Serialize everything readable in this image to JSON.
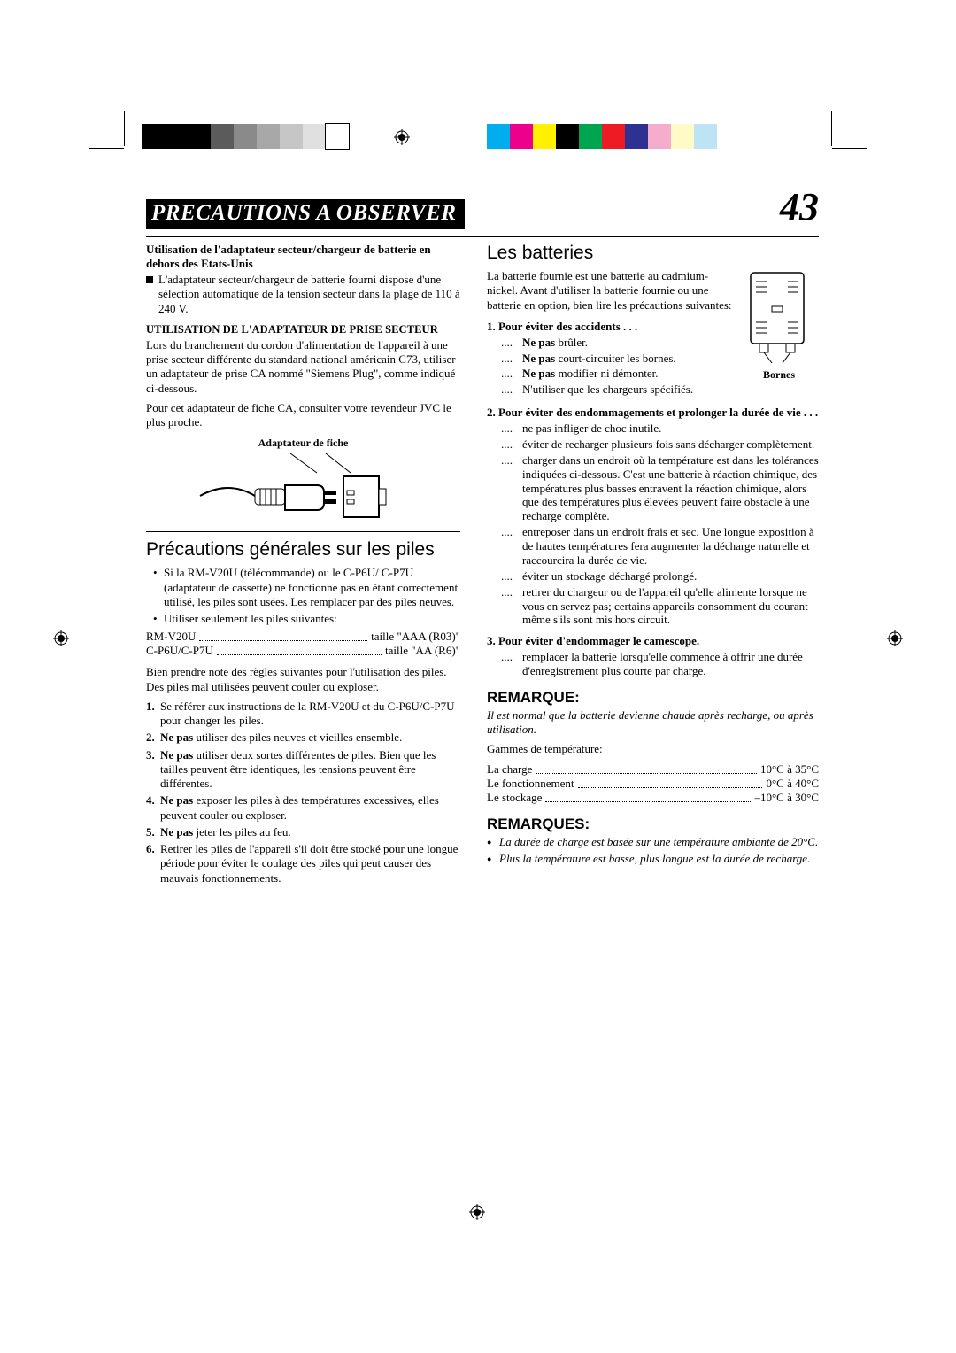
{
  "page": {
    "title": "PRECAUTIONS A OBSERVER",
    "number": "43"
  },
  "colorbars": {
    "left": [
      "#000000",
      "#000000",
      "#000000",
      "#5b5b5b",
      "#8a8a8a",
      "#a8a8a8",
      "#c6c6c6",
      "#e0e0e0",
      "#ffffff"
    ],
    "right": [
      "#00adee",
      "#ec008c",
      "#fff100",
      "#000000",
      "#00a550",
      "#ed1c24",
      "#2e3092",
      "#f6adcd",
      "#fffbc6",
      "#bde3f4"
    ]
  },
  "left": {
    "h_adapter": "Utilisation de l'adaptateur secteur/chargeur de batterie en dehors des Etats-Unis",
    "adapter_body": "L'adaptateur secteur/chargeur de batterie fourni dispose d'une sélection automatique de la tension secteur dans la plage de 110 à 240 V.",
    "h_utilisation": "UTILISATION DE L'ADAPTATEUR DE PRISE SECTEUR",
    "utilisation_body1": "Lors du branchement du cordon d'alimentation de l'appareil à une prise secteur différente du standard national américain C73, utiliser un adaptateur de prise CA nommé \"Siemens Plug\", comme indiqué ci-dessous.",
    "utilisation_body2": "Pour cet adaptateur de fiche CA, consulter votre revendeur JVC le plus proche.",
    "caption_plug": "Adaptateur de fiche",
    "h_piles": "Précautions générales sur les piles",
    "piles_b1": "Si la RM-V20U (télécommande) ou le C-P6U/ C-P7U (adaptateur de cassette) ne fonctionne pas en étant correctement utilisé, les piles sont usées. Les remplacer par des piles neuves.",
    "piles_b2": "Utiliser seulement les piles suivantes:",
    "size_rows": [
      {
        "k": "RM-V20U",
        "v": "taille \"AAA (R03)\""
      },
      {
        "k": "C-P6U/C-P7U",
        "v": "taille \"AA (R6)\""
      }
    ],
    "piles_note": "Bien prendre note des règles suivantes pour l'utilisation des piles. Des piles mal utilisées peuvent couler ou exploser.",
    "piles_list": [
      "Se référer aux instructions de la RM-V20U et du C-P6U/C-P7U pour changer les piles.",
      "<b>Ne pas</b> utiliser des piles neuves et vieilles ensemble.",
      "<b>Ne pas</b> utiliser deux sortes différentes de piles. Bien que les tailles peuvent être identiques, les tensions peuvent être différentes.",
      "<b>Ne pas</b> exposer les piles à des températures excessives, elles peuvent couler ou exploser.",
      "<b>Ne pas</b> jeter les piles au feu.",
      "Retirer les piles de l'appareil s'il doit être stocké pour une longue période pour éviter le coulage des piles qui peut causer des mauvais fonctionnements."
    ]
  },
  "right": {
    "h_batteries": "Les batteries",
    "batt_intro": "La batterie fournie est une batterie au cadmium-nickel. Avant d'utiliser la batterie fournie ou une batterie en option, bien lire les précautions suivantes:",
    "fig_label": "Bornes",
    "s1_h": "1.  Pour éviter des accidents . . .",
    "s1_items": [
      "<b>Ne pas</b> brûler.",
      "<b>Ne pas</b> court-circuiter les bornes.",
      "<b>Ne pas</b> modifier ni démonter.",
      "N'utiliser que les chargeurs spécifiés."
    ],
    "s2_h": "2.  Pour éviter des endommagements et prolonger la durée de vie . . .",
    "s2_items": [
      "ne pas infliger de choc inutile.",
      "éviter de recharger plusieurs fois sans décharger complètement.",
      "charger dans un endroit où la température est dans les tolérances indiquées ci-dessous. C'est une batterie à réaction chimique, des températures plus basses entravent la réaction chimique, alors que des températures plus élevées peuvent faire obstacle à une recharge complète.",
      "entreposer dans un endroit frais et sec. Une longue exposition à de hautes températures fera augmenter la décharge naturelle et raccourcira la durée de vie.",
      "éviter un stockage déchargé prolongé.",
      "retirer du chargeur ou de l'appareil qu'elle alimente lorsque ne vous en servez pas; certains appareils consomment du courant même s'ils sont mis hors circuit."
    ],
    "s3_h": "3.  Pour éviter d'endommager le camescope.",
    "s3_items": [
      "remplacer la batterie lorsqu'elle commence à offrir une durée d'enregistrement plus courte par charge."
    ],
    "remarque_h": "REMARQUE:",
    "remarque_body": "Il est normal que la batterie devienne chaude après recharge, ou après utilisation.",
    "temps_h": "Gammes de température:",
    "temps": [
      {
        "k": "La charge",
        "v": "10°C à 35°C"
      },
      {
        "k": "Le fonctionnement",
        "v": "0°C à 40°C"
      },
      {
        "k": "Le stockage",
        "v": "–10°C à 30°C"
      }
    ],
    "remarques_h": "REMARQUES:",
    "remarques_items": [
      "La durée de charge est basée sur une température ambiante de 20°C.",
      "Plus la température est basse, plus longue est la durée de recharge."
    ]
  }
}
